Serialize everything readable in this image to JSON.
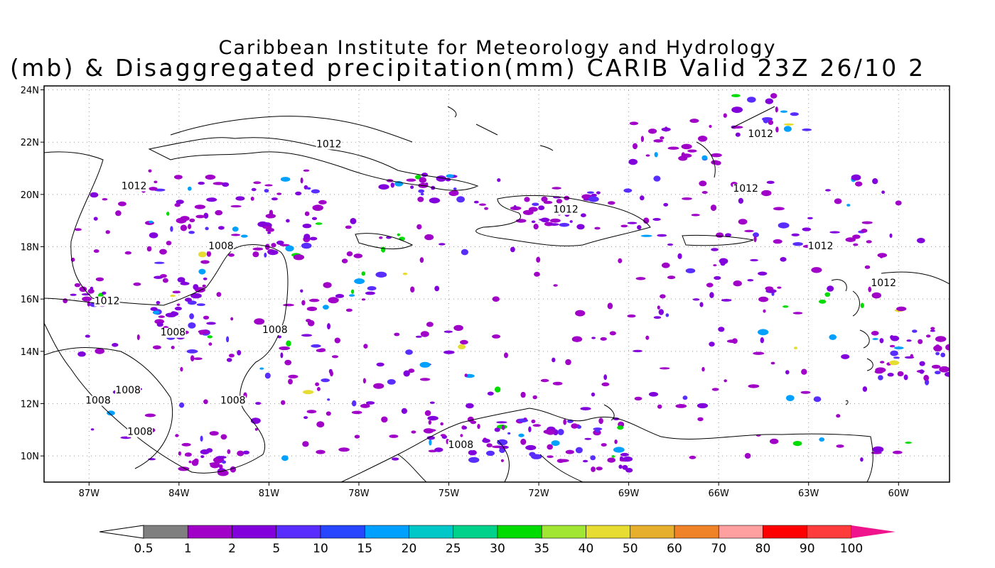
{
  "title": {
    "line1": "Caribbean Institute for Meteorology and Hydrology",
    "line2": "(mb) & Disaggregated precipitation(mm) CARIB Valid 23Z 26/10 2"
  },
  "map": {
    "lat_labels": [
      "24N",
      "22N",
      "20N",
      "18N",
      "16N",
      "14N",
      "12N",
      "10N"
    ],
    "lat_values": [
      24,
      22,
      20,
      18,
      16,
      14,
      12,
      10
    ],
    "lon_labels": [
      "87W",
      "84W",
      "81W",
      "78W",
      "75W",
      "72W",
      "69W",
      "66W",
      "63W",
      "60W"
    ],
    "lon_values": [
      -87,
      -84,
      -81,
      -78,
      -75,
      -72,
      -69,
      -66,
      -63,
      -60
    ],
    "extent": {
      "lon": [
        -88.5,
        -58.3
      ],
      "lat": [
        9.0,
        24.15
      ]
    },
    "contour_labels": [
      {
        "text": "1012",
        "lon": -79.0,
        "lat": 21.8
      },
      {
        "text": "1012",
        "lon": -85.5,
        "lat": 20.2
      },
      {
        "text": "1008",
        "lon": -82.6,
        "lat": 17.9
      },
      {
        "text": "1012",
        "lon": -86.4,
        "lat": 15.8
      },
      {
        "text": "1008",
        "lon": -84.2,
        "lat": 14.6
      },
      {
        "text": "1008",
        "lon": -80.8,
        "lat": 14.7
      },
      {
        "text": "1008",
        "lon": -86.7,
        "lat": 12.0
      },
      {
        "text": "1008",
        "lon": -85.7,
        "lat": 12.4
      },
      {
        "text": "1008",
        "lon": -82.2,
        "lat": 12.0
      },
      {
        "text": "1008",
        "lon": -85.3,
        "lat": 10.8
      },
      {
        "text": "1008",
        "lon": -74.6,
        "lat": 10.3
      },
      {
        "text": "1012",
        "lon": -71.1,
        "lat": 19.3
      },
      {
        "text": "1012",
        "lon": -64.6,
        "lat": 22.2
      },
      {
        "text": "1012",
        "lon": -65.1,
        "lat": 20.1
      },
      {
        "text": "1012",
        "lon": -62.6,
        "lat": 17.9
      },
      {
        "text": "1012",
        "lon": -60.5,
        "lat": 16.5
      }
    ]
  },
  "colorbar": {
    "labels": [
      "0.5",
      "1",
      "2",
      "5",
      "10",
      "15",
      "20",
      "25",
      "30",
      "35",
      "40",
      "50",
      "60",
      "70",
      "80",
      "90",
      "100"
    ],
    "colors": [
      "#7f7f7f",
      "#a000c8",
      "#8200dc",
      "#5a2dff",
      "#2846ff",
      "#00a0ff",
      "#00c8c8",
      "#00d28c",
      "#00dc00",
      "#a0e632",
      "#e6dc32",
      "#e6af2d",
      "#f08228",
      "#ffa0a0",
      "#ff0000",
      "#ff3c3c"
    ],
    "under_color": "#ffffff",
    "over_color": "#f0148c"
  }
}
